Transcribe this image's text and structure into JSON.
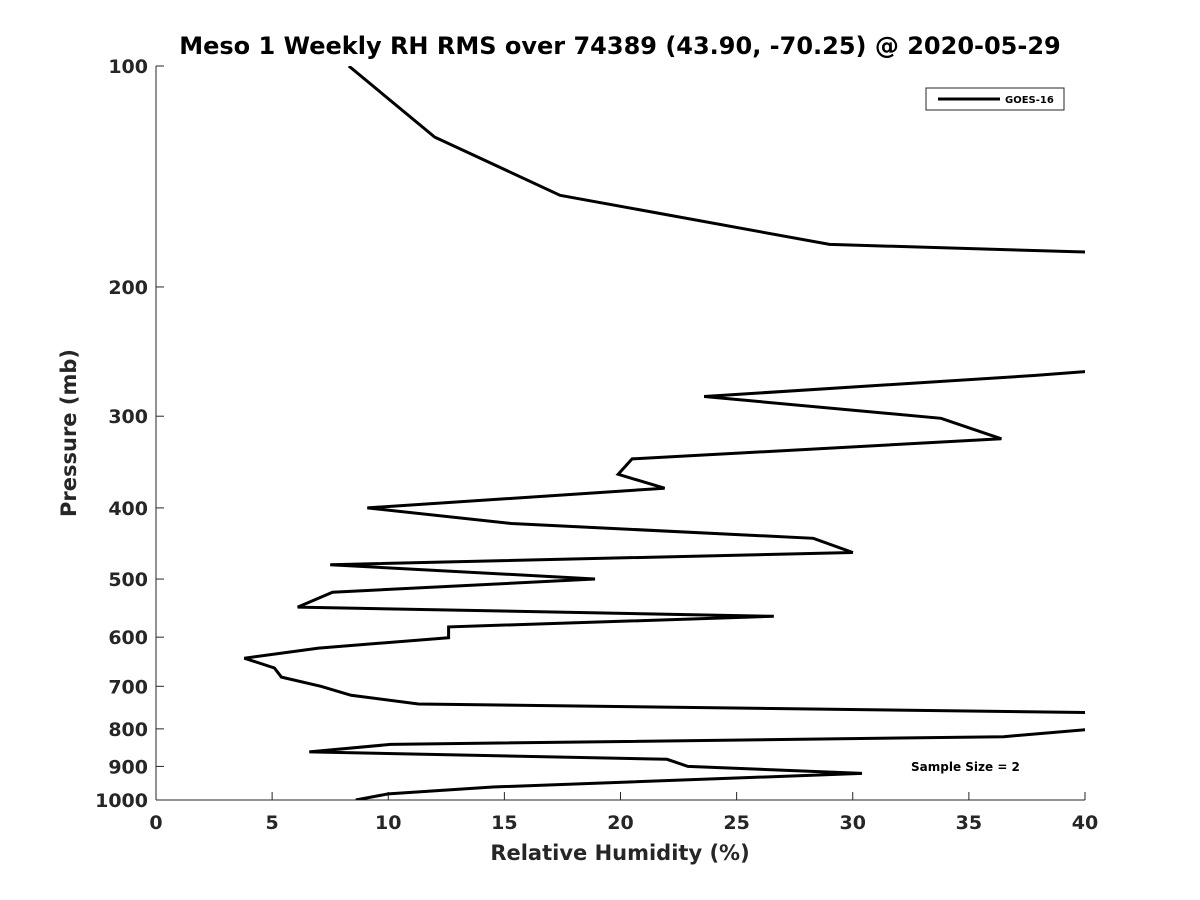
{
  "chart_data": {
    "type": "line",
    "title": "Meso 1 Weekly RH RMS over 74389 (43.90, -70.25) @ 2020-05-29",
    "xlabel": "Relative Humidity (%)",
    "ylabel": "Pressure (mb)",
    "xlim": [
      0,
      40
    ],
    "ylim": [
      100,
      1000
    ],
    "y_scale": "log",
    "y_reversed": true,
    "grid": false,
    "legend_position": "top-right",
    "x_ticks": [
      "0",
      "5",
      "10",
      "15",
      "20",
      "25",
      "30",
      "35",
      "40"
    ],
    "y_ticks": [
      "100",
      "200",
      "300",
      "400",
      "500",
      "600",
      "700",
      "800",
      "900",
      "1000"
    ],
    "annotation": "Sample Size = 2",
    "series": [
      {
        "name": "GOES-16",
        "color": "#000000",
        "clip_x_max": 40,
        "points": [
          [
            8.3,
            100
          ],
          [
            12.0,
            125
          ],
          [
            17.4,
            150
          ],
          [
            29.0,
            175
          ],
          [
            42.0,
            180
          ],
          [
            40.6,
            260
          ],
          [
            37.8,
            264
          ],
          [
            23.6,
            282
          ],
          [
            33.8,
            302
          ],
          [
            36.4,
            322
          ],
          [
            20.5,
            343
          ],
          [
            19.9,
            360
          ],
          [
            21.9,
            376
          ],
          [
            9.1,
            400
          ],
          [
            15.3,
            420
          ],
          [
            28.3,
            440
          ],
          [
            30.0,
            460
          ],
          [
            7.5,
            478
          ],
          [
            18.9,
            500
          ],
          [
            7.6,
            521
          ],
          [
            6.1,
            546
          ],
          [
            26.6,
            562
          ],
          [
            12.6,
            581
          ],
          [
            12.6,
            601
          ],
          [
            7.0,
            621
          ],
          [
            3.8,
            641
          ],
          [
            5.1,
            661
          ],
          [
            5.4,
            680
          ],
          [
            7.1,
            700
          ],
          [
            8.4,
            720
          ],
          [
            11.3,
            740
          ],
          [
            40.2,
            760
          ],
          [
            40.2,
            801
          ],
          [
            36.5,
            820
          ],
          [
            10.1,
            840
          ],
          [
            6.6,
            860
          ],
          [
            22.0,
            880
          ],
          [
            22.9,
            900
          ],
          [
            30.4,
            920
          ],
          [
            14.5,
            960
          ],
          [
            10.0,
            981
          ],
          [
            8.6,
            1000
          ]
        ]
      }
    ]
  }
}
